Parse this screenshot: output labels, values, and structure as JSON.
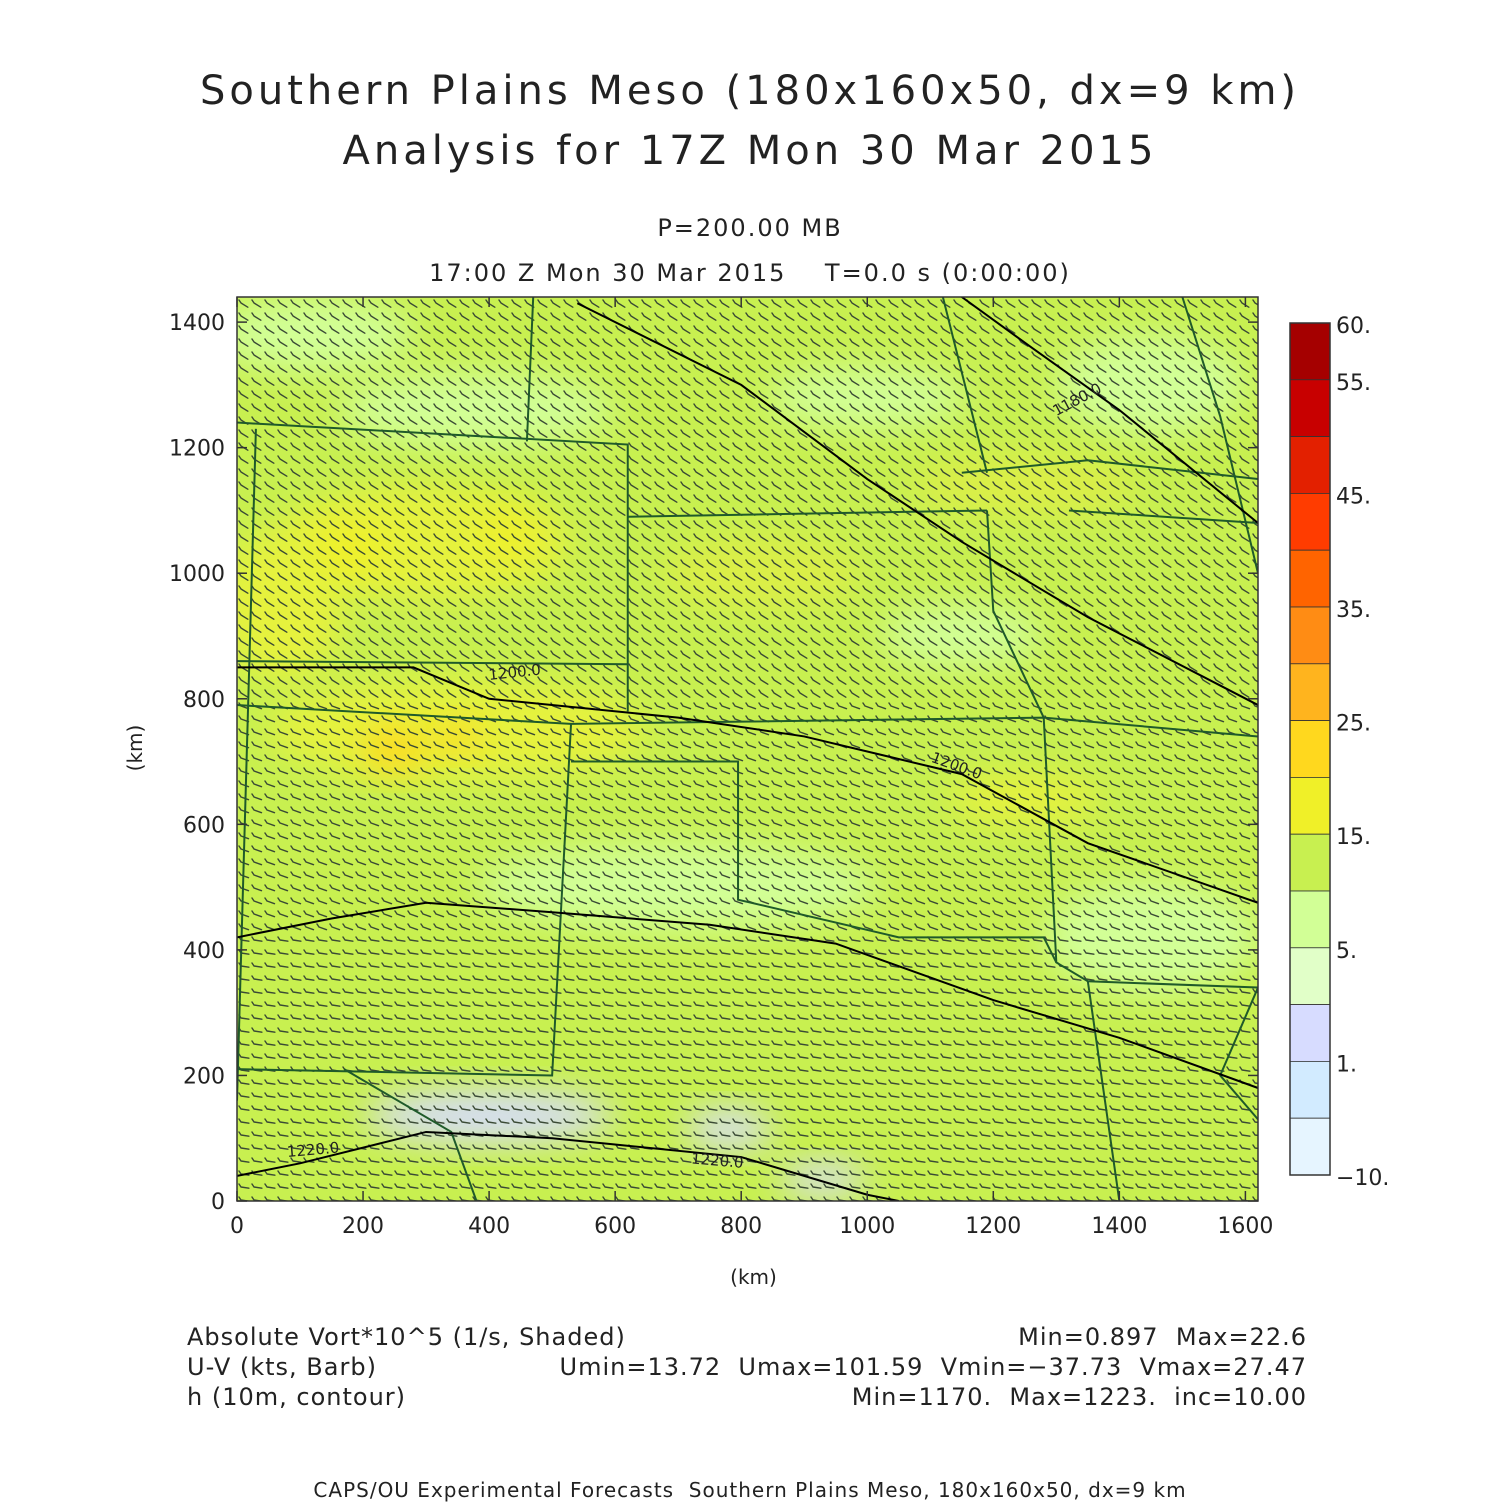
{
  "title": {
    "line1": "Southern Plains Meso (180x160x50, dx=9 km)",
    "line2": "Analysis for 17Z Mon 30 Mar 2015"
  },
  "subtitle": {
    "level": "P=200.00 MB",
    "time": "17:00 Z Mon 30 Mar 2015    T=0.0 s (0:00:00)"
  },
  "axes": {
    "x_label": "(km)",
    "y_label": "(km)",
    "x_ticks": [
      "0",
      "200",
      "400",
      "600",
      "800",
      "1000",
      "1200",
      "1400",
      "1600"
    ],
    "y_ticks": [
      "0",
      "200",
      "400",
      "600",
      "800",
      "1000",
      "1200",
      "1400"
    ]
  },
  "colorbar": {
    "labels": [
      "60.",
      "55.",
      "45.",
      "35.",
      "25.",
      "15.",
      "5.",
      "1.",
      "−10."
    ],
    "colors": [
      "#a50000",
      "#c80000",
      "#e32000",
      "#ff3c00",
      "#ff6400",
      "#ff8c14",
      "#ffb41e",
      "#ffd81e",
      "#f0f028",
      "#c8f050",
      "#d2ff96",
      "#e1ffc8",
      "#d7dcff",
      "#d2ebff",
      "#e6f5ff"
    ]
  },
  "contour_labels": [
    "1180.0",
    "1200.0",
    "1200.0",
    "1220.0",
    "1220.0"
  ],
  "legend": {
    "field1": "Absolute Vort*10^5 (1/s, Shaded)",
    "field2": "U-V (kts, Barb)",
    "field3": "h (10m, contour)",
    "stats1": "Min=0.897  Max=22.6",
    "stats2": "Umin=13.72  Umax=101.59  Vmin=−37.73  Vmax=27.47",
    "stats3": "Min=1170.  Max=1223.  inc=10.00"
  },
  "footer": "CAPS/OU Experimental Forecasts  Southern Plains Meso, 180x160x50, dx=9 km",
  "chart_data": {
    "type": "heatmap",
    "title": "Southern Plains Meso (180x160x50, dx=9 km)",
    "xlabel": "(km)",
    "ylabel": "(km)",
    "xlim": [
      0,
      1620
    ],
    "ylim": [
      0,
      1440
    ],
    "shading": {
      "field": "Absolute Vort*10^5 (1/s, Shaded)",
      "min": 0.897,
      "max": 22.6,
      "levels": [
        -10,
        1,
        5,
        15,
        25,
        35,
        45,
        55,
        60
      ]
    },
    "barbs": {
      "field": "U-V (kts, Barb)",
      "umin": 13.72,
      "umax": 101.59,
      "vmin": -37.73,
      "vmax": 27.47
    },
    "contours": {
      "field": "h (10m, contour)",
      "min": 1170,
      "max": 1223,
      "inc": 10,
      "lines": [
        {
          "level": 1180,
          "points": [
            [
              1150,
              1440
            ],
            [
              1260,
              1360
            ],
            [
              1400,
              1260
            ],
            [
              1620,
              1080
            ]
          ]
        },
        {
          "level": 1190,
          "points": [
            [
              540,
              1430
            ],
            [
              800,
              1300
            ],
            [
              1000,
              1150
            ],
            [
              1150,
              1050
            ],
            [
              1350,
              930
            ],
            [
              1620,
              790
            ]
          ]
        },
        {
          "level": 1200,
          "points": [
            [
              0,
              850
            ],
            [
              280,
              850
            ],
            [
              400,
              800
            ],
            [
              700,
              770
            ],
            [
              900,
              740
            ],
            [
              1150,
              680
            ],
            [
              1350,
              570
            ],
            [
              1620,
              475
            ]
          ]
        },
        {
          "level": 1210,
          "points": [
            [
              0,
              420
            ],
            [
              150,
              450
            ],
            [
              300,
              475
            ],
            [
              500,
              460
            ],
            [
              750,
              440
            ],
            [
              950,
              410
            ],
            [
              1200,
              320
            ],
            [
              1400,
              260
            ],
            [
              1620,
              180
            ]
          ]
        },
        {
          "level": 1220,
          "points": [
            [
              0,
              40
            ],
            [
              100,
              60
            ],
            [
              300,
              110
            ],
            [
              500,
              100
            ],
            [
              800,
              70
            ],
            [
              1000,
              10
            ],
            [
              1050,
              0
            ]
          ]
        }
      ]
    }
  }
}
